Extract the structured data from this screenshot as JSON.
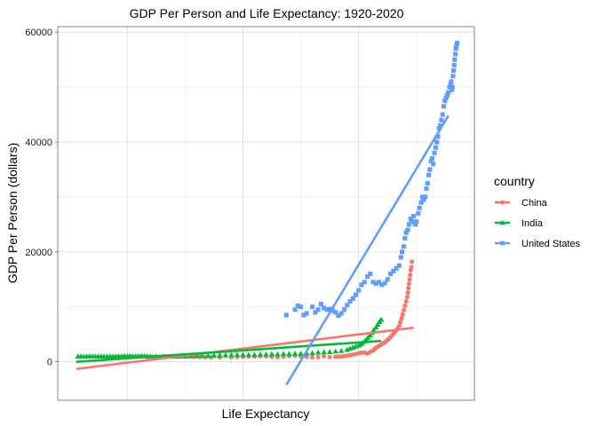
{
  "chart_data": {
    "type": "scatter",
    "title": "GDP Per Person and Life Expectancy: 1920-2020",
    "xlabel": "Life Expectancy",
    "ylabel": "GDP Per Person (dollars)",
    "ylim": [
      -7000,
      61000
    ],
    "yticks": [
      0,
      20000,
      40000,
      60000
    ],
    "ytick_labels": [
      "0",
      "20000",
      "40000",
      "60000"
    ],
    "grid": true,
    "legend_position": "right",
    "legend_title": "country",
    "series": [
      {
        "name": "China",
        "color": "#F8766D",
        "marker": "circle",
        "points": [
          [
            28.5,
            900
          ],
          [
            29.5,
            950
          ],
          [
            30.5,
            1000
          ],
          [
            31.5,
            950
          ],
          [
            32.5,
            1000
          ],
          [
            33.5,
            900
          ],
          [
            34.5,
            950
          ],
          [
            35.5,
            900
          ],
          [
            36.5,
            1000
          ],
          [
            37.5,
            1050
          ],
          [
            38.5,
            1000
          ],
          [
            39.5,
            1100
          ],
          [
            40.5,
            1000
          ],
          [
            41.5,
            900
          ],
          [
            42.5,
            900
          ],
          [
            43.5,
            850
          ],
          [
            44.5,
            800
          ],
          [
            46,
            800
          ],
          [
            48,
            850
          ],
          [
            49,
            900
          ],
          [
            50,
            900
          ],
          [
            51,
            950
          ],
          [
            52,
            950
          ],
          [
            53,
            1000
          ],
          [
            54,
            1000
          ],
          [
            55,
            900
          ],
          [
            56,
            850
          ],
          [
            57,
            950
          ],
          [
            58,
            1050
          ],
          [
            59,
            1100
          ],
          [
            60,
            1000
          ],
          [
            61,
            900
          ],
          [
            62,
            800
          ],
          [
            63,
            850
          ],
          [
            64,
            1000
          ],
          [
            65,
            850
          ],
          [
            66,
            900
          ],
          [
            66.5,
            950
          ],
          [
            67,
            950
          ],
          [
            67.5,
            1000
          ],
          [
            68,
            1100
          ],
          [
            68.5,
            1200
          ],
          [
            69,
            1300
          ],
          [
            69.5,
            1400
          ],
          [
            70,
            1550
          ],
          [
            70.5,
            1650
          ],
          [
            71,
            1700
          ],
          [
            71.5,
            1500
          ],
          [
            72,
            1800
          ],
          [
            72.5,
            2100
          ],
          [
            72.8,
            2400
          ],
          [
            73.1,
            2600
          ],
          [
            73.4,
            2800
          ],
          [
            73.7,
            3000
          ],
          [
            74,
            3200
          ],
          [
            74.3,
            3400
          ],
          [
            74.6,
            3600
          ],
          [
            74.9,
            3900
          ],
          [
            75.2,
            4200
          ],
          [
            75.5,
            4500
          ],
          [
            75.8,
            4800
          ],
          [
            76.1,
            5200
          ],
          [
            76.4,
            5600
          ],
          [
            76.7,
            6000
          ],
          [
            77,
            6500
          ],
          [
            77.2,
            7200
          ],
          [
            77.4,
            7900
          ],
          [
            77.6,
            8600
          ],
          [
            77.8,
            9400
          ],
          [
            78,
            10200
          ],
          [
            78.2,
            11000
          ],
          [
            78.4,
            11800
          ],
          [
            78.5,
            12600
          ],
          [
            78.6,
            13400
          ],
          [
            78.7,
            14200
          ],
          [
            78.8,
            15000
          ],
          [
            78.9,
            15800
          ],
          [
            79,
            16700
          ],
          [
            79.1,
            17200
          ],
          [
            79.2,
            18200
          ]
        ],
        "trend": [
          [
            21.2,
            -1300
          ],
          [
            79.5,
            6200
          ]
        ]
      },
      {
        "name": "India",
        "color": "#00BA38",
        "marker": "triangle",
        "points": [
          [
            21.5,
            1000
          ],
          [
            22,
            1020
          ],
          [
            22.5,
            980
          ],
          [
            23,
            1000
          ],
          [
            23.5,
            1030
          ],
          [
            24,
            1010
          ],
          [
            24.5,
            990
          ],
          [
            25,
            1000
          ],
          [
            25.5,
            1020
          ],
          [
            26,
            1000
          ],
          [
            26.5,
            980
          ],
          [
            27,
            1000
          ],
          [
            27.5,
            1010
          ],
          [
            28,
            990
          ],
          [
            28.5,
            1000
          ],
          [
            29,
            1000
          ],
          [
            29.5,
            1020
          ],
          [
            30,
            1050
          ],
          [
            30.5,
            1000
          ],
          [
            31,
            980
          ],
          [
            31.5,
            1000
          ],
          [
            32,
            1020
          ],
          [
            32.5,
            1050
          ],
          [
            33,
            1040
          ],
          [
            33.5,
            1020
          ],
          [
            34,
            1000
          ],
          [
            35,
            960
          ],
          [
            36,
            940
          ],
          [
            37,
            960
          ],
          [
            38,
            950
          ],
          [
            39,
            970
          ],
          [
            40,
            990
          ],
          [
            41,
            1020
          ],
          [
            42,
            1050
          ],
          [
            43,
            1050
          ],
          [
            44,
            1100
          ],
          [
            45,
            1150
          ],
          [
            46,
            1200
          ],
          [
            47,
            1200
          ],
          [
            48,
            1250
          ],
          [
            49,
            1280
          ],
          [
            50,
            1300
          ],
          [
            51,
            1300
          ],
          [
            52,
            1300
          ],
          [
            53,
            1350
          ],
          [
            54,
            1350
          ],
          [
            55,
            1400
          ],
          [
            56,
            1400
          ],
          [
            57,
            1450
          ],
          [
            58,
            1450
          ],
          [
            59,
            1500
          ],
          [
            60,
            1500
          ],
          [
            61,
            1550
          ],
          [
            62,
            1600
          ],
          [
            63,
            1700
          ],
          [
            64,
            1750
          ],
          [
            65,
            1800
          ],
          [
            66,
            1900
          ],
          [
            67,
            2000
          ],
          [
            68,
            2200
          ],
          [
            68.5,
            2400
          ],
          [
            69,
            2600
          ],
          [
            69.5,
            2800
          ],
          [
            70,
            3000
          ],
          [
            70.3,
            3200
          ],
          [
            70.6,
            3400
          ],
          [
            71,
            3700
          ],
          [
            71.3,
            4000
          ],
          [
            71.6,
            4400
          ],
          [
            72,
            4800
          ],
          [
            72.3,
            5300
          ],
          [
            72.6,
            5800
          ],
          [
            73,
            6300
          ],
          [
            73.3,
            6800
          ],
          [
            73.6,
            7300
          ],
          [
            73.9,
            7700
          ]
        ],
        "trend": [
          [
            21.2,
            0
          ],
          [
            73.9,
            3800
          ]
        ]
      },
      {
        "name": "United States",
        "color": "#619CFF",
        "marker": "square",
        "points": [
          [
            57.5,
            8500
          ],
          [
            59,
            9500
          ],
          [
            59.5,
            10200
          ],
          [
            60,
            10000
          ],
          [
            60.5,
            8500
          ],
          [
            61,
            8800
          ],
          [
            62,
            10000
          ],
          [
            62.5,
            9000
          ],
          [
            63,
            9500
          ],
          [
            63.5,
            10500
          ],
          [
            64,
            9800
          ],
          [
            64.5,
            9500
          ],
          [
            65,
            9600
          ],
          [
            65.5,
            9300
          ],
          [
            66,
            9000
          ],
          [
            66.5,
            8400
          ],
          [
            67,
            8800
          ],
          [
            67.5,
            9500
          ],
          [
            68,
            10300
          ],
          [
            68.5,
            11000
          ],
          [
            69,
            11500
          ],
          [
            69.5,
            12200
          ],
          [
            70,
            13000
          ],
          [
            70.5,
            14000
          ],
          [
            71,
            14500
          ],
          [
            71.5,
            15500
          ],
          [
            72,
            16000
          ],
          [
            72.5,
            14500
          ],
          [
            73,
            14200
          ],
          [
            73.5,
            14500
          ],
          [
            74,
            14000
          ],
          [
            74.5,
            14300
          ],
          [
            75,
            15000
          ],
          [
            75.5,
            16000
          ],
          [
            76,
            16500
          ],
          [
            76.5,
            17000
          ],
          [
            77,
            17500
          ],
          [
            77.3,
            19000
          ],
          [
            77.5,
            20000
          ],
          [
            77.8,
            21000
          ],
          [
            78,
            22500
          ],
          [
            78.2,
            23500
          ],
          [
            78.5,
            24000
          ],
          [
            78.7,
            25000
          ],
          [
            79,
            26000
          ],
          [
            79.2,
            25500
          ],
          [
            79.5,
            26500
          ],
          [
            79.8,
            25000
          ],
          [
            80,
            25500
          ],
          [
            80.3,
            27000
          ],
          [
            80.5,
            28000
          ],
          [
            80.8,
            29000
          ],
          [
            81,
            30000
          ],
          [
            81.2,
            29500
          ],
          [
            81.5,
            30000
          ],
          [
            81.7,
            31500
          ],
          [
            81.9,
            32500
          ],
          [
            82.1,
            34000
          ],
          [
            82.3,
            35000
          ],
          [
            82.5,
            36500
          ],
          [
            82.7,
            37000
          ],
          [
            82.9,
            36000
          ],
          [
            83.1,
            38000
          ],
          [
            83.3,
            39000
          ],
          [
            83.5,
            40000
          ],
          [
            83.7,
            41000
          ],
          [
            83.9,
            42500
          ],
          [
            84.1,
            43000
          ],
          [
            84.3,
            44000
          ],
          [
            84.5,
            45000
          ],
          [
            84.7,
            46500
          ],
          [
            84.9,
            47500
          ],
          [
            85.1,
            48000
          ],
          [
            85.3,
            48500
          ],
          [
            85.5,
            49000
          ],
          [
            85.7,
            50000
          ],
          [
            85.9,
            50500
          ],
          [
            86,
            51000
          ],
          [
            86.1,
            49500
          ],
          [
            86.2,
            50000
          ],
          [
            86.3,
            52000
          ],
          [
            86.4,
            53000
          ],
          [
            86.5,
            54000
          ],
          [
            86.6,
            55000
          ],
          [
            86.7,
            56000
          ],
          [
            86.8,
            57000
          ],
          [
            86.9,
            57500
          ],
          [
            87,
            58000
          ]
        ],
        "trend": [
          [
            57.5,
            -4200
          ],
          [
            85.5,
            44800
          ]
        ]
      }
    ]
  }
}
